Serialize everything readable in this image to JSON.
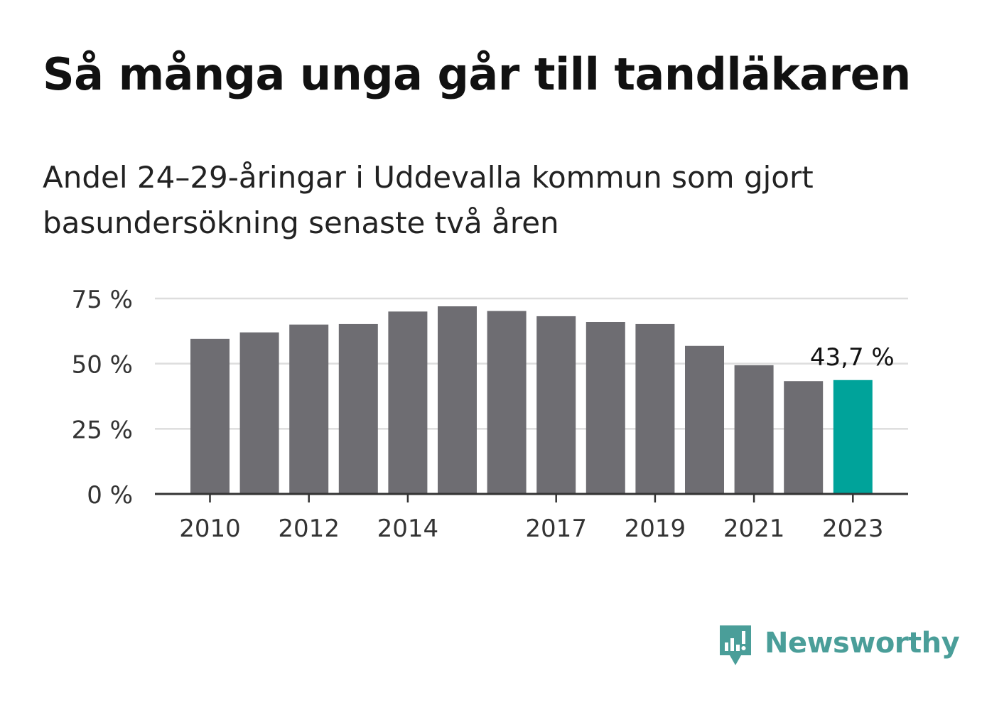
{
  "header": {
    "title": "Så många unga går till tandläkaren",
    "subtitle": "Andel 24–29-åringar i Uddevalla kommun som gjort basundersökning senaste två åren"
  },
  "logo": {
    "text": "Newsworthy",
    "icon": "newsworthy-logo-icon",
    "color": "#4a9e99"
  },
  "chart_data": {
    "type": "bar",
    "categories": [
      "2010",
      "2011",
      "2012",
      "2013",
      "2014",
      "2015",
      "2016",
      "2017",
      "2018",
      "2019",
      "2020",
      "2021",
      "2022",
      "2023"
    ],
    "values": [
      59.5,
      62,
      65,
      65.2,
      70,
      72,
      70.2,
      68.2,
      66,
      65.2,
      56.8,
      49.4,
      43.3,
      43.7
    ],
    "tick_labels_x": [
      "2010",
      "2012",
      "2014",
      "2017",
      "2019",
      "2021",
      "2023"
    ],
    "y_ticks": [
      0,
      25,
      50,
      75
    ],
    "y_tick_labels": [
      "0 %",
      "25 %",
      "50 %",
      "75 %"
    ],
    "ylim": [
      0,
      75
    ],
    "grid": true,
    "highlight_index": 13,
    "highlight_label": "43,7 %",
    "colors": {
      "bar": "#6e6d72",
      "highlight": "#00a39a",
      "grid": "#dddddd",
      "axis": "#333333"
    }
  }
}
